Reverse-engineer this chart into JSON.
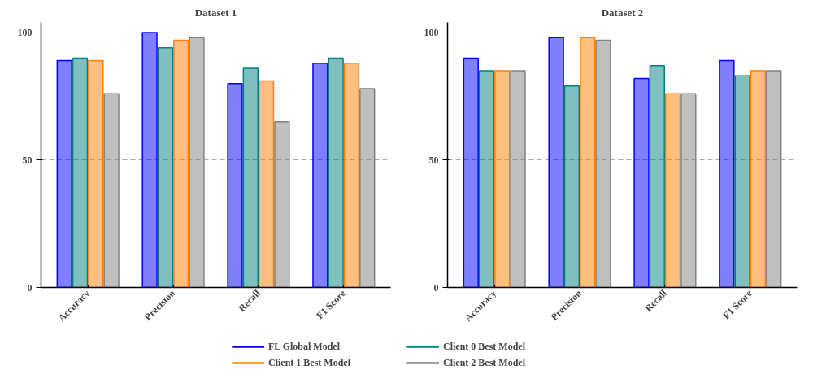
{
  "chart_data": [
    {
      "type": "bar",
      "title": "Dataset 1",
      "categories": [
        "Accuracy",
        "Precision",
        "Recall",
        "F1 Score"
      ],
      "ylim": [
        0,
        104
      ],
      "yticks": [
        0,
        50,
        100
      ],
      "grid": "y",
      "legend": "bottom",
      "series": [
        {
          "name": "FL Global Model",
          "color": "#0000ff",
          "values": [
            89,
            100,
            80,
            88
          ]
        },
        {
          "name": "Client 0 Best Model",
          "color": "#008080",
          "values": [
            90,
            94,
            86,
            90
          ]
        },
        {
          "name": "Client 1 Best Model",
          "color": "#ff8000",
          "values": [
            89,
            97,
            81,
            88
          ]
        },
        {
          "name": "Client 2 Best Model",
          "color": "#808080",
          "values": [
            76,
            98,
            65,
            78
          ]
        }
      ]
    },
    {
      "type": "bar",
      "title": "Dataset 2",
      "categories": [
        "Accuracy",
        "Precision",
        "Recall",
        "F1 Score"
      ],
      "ylim": [
        0,
        104
      ],
      "yticks": [
        0,
        50,
        100
      ],
      "grid": "y",
      "legend": "bottom",
      "series": [
        {
          "name": "FL Global Model",
          "color": "#0000ff",
          "values": [
            90,
            98,
            82,
            89
          ]
        },
        {
          "name": "Client 0 Best Model",
          "color": "#008080",
          "values": [
            85,
            79,
            87,
            83
          ]
        },
        {
          "name": "Client 1 Best Model",
          "color": "#ff8000",
          "values": [
            85,
            98,
            76,
            85
          ]
        },
        {
          "name": "Client 2 Best Model",
          "color": "#808080",
          "values": [
            85,
            97,
            76,
            85
          ]
        }
      ]
    }
  ]
}
